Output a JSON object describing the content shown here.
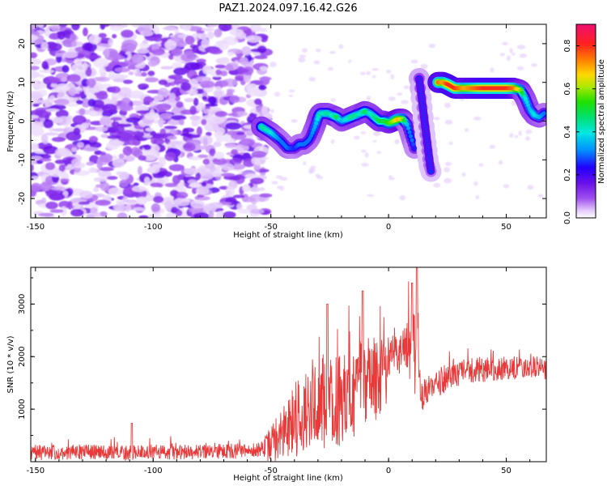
{
  "title": "PAZ1.2024.097.16.42.G26",
  "chart_data": [
    {
      "type": "heatmap",
      "xlabel": "Height of straight line (km)",
      "ylabel": "Frequency (Hz)",
      "xlim": [
        -152,
        67
      ],
      "ylim": [
        -25,
        25
      ],
      "xticks": [
        -150,
        -100,
        -50,
        0,
        50
      ],
      "yticks": [
        -20,
        -10,
        0,
        10,
        20
      ],
      "grid": false,
      "colorbar": {
        "label": "Normalized spectral amplitude",
        "range": [
          0.0,
          0.9
        ],
        "ticks": [
          0.0,
          0.2,
          0.4,
          0.6,
          0.8
        ],
        "colormap": "rainbow (white-violet-blue-cyan-green-yellow-red-magenta)"
      },
      "noise_region_x": [
        -152,
        -52
      ],
      "ridge_segments": [
        {
          "x": [
            -54,
            -50,
            -46,
            -43,
            -40,
            -38,
            -36,
            -34,
            -33,
            -31,
            -30,
            -29,
            -28,
            -26,
            -24,
            -22,
            -20,
            -18,
            -16,
            -14,
            -12,
            -10,
            -8,
            -6,
            -4,
            -2,
            0,
            2,
            4,
            6,
            8,
            9,
            10,
            11
          ],
          "y": [
            -1.5,
            -3,
            -5,
            -7,
            -7,
            -6,
            -6,
            -5,
            -4,
            -1,
            1,
            2,
            2,
            2,
            1.5,
            1,
            0,
            0.5,
            1,
            1.5,
            2,
            2.5,
            2,
            1,
            0,
            0,
            -0.5,
            0,
            0.5,
            0.5,
            -1,
            -3,
            -5,
            -7
          ],
          "amplitude": [
            0.45,
            0.4,
            0.3,
            0.3,
            0.25,
            0.3,
            0.3,
            0.3,
            0.3,
            0.35,
            0.4,
            0.45,
            0.4,
            0.45,
            0.4,
            0.5,
            0.35,
            0.4,
            0.45,
            0.45,
            0.4,
            0.5,
            0.4,
            0.45,
            0.5,
            0.5,
            0.55,
            0.6,
            0.7,
            0.6,
            0.35,
            0.3,
            0.3,
            0.25
          ]
        },
        {
          "x": [
            13,
            14,
            15,
            16,
            17,
            18
          ],
          "y": [
            11,
            5,
            -1,
            -6,
            -11,
            -13
          ],
          "amplitude": [
            0.2,
            0.15,
            0.15,
            0.15,
            0.15,
            0.15
          ]
        },
        {
          "x": [
            21,
            23,
            25,
            28,
            32,
            36,
            40,
            45,
            50,
            53,
            56,
            58,
            60,
            62,
            64,
            66
          ],
          "y": [
            10,
            10,
            9.5,
            8.5,
            8.5,
            8.5,
            8.5,
            8.5,
            8.5,
            8.5,
            8,
            6,
            3,
            1.5,
            1,
            2
          ],
          "amplitude": [
            0.75,
            0.7,
            0.8,
            0.8,
            0.7,
            0.75,
            0.8,
            0.8,
            0.8,
            0.75,
            0.6,
            0.4,
            0.35,
            0.4,
            0.35,
            0.3
          ]
        }
      ]
    },
    {
      "type": "line",
      "xlabel": "Height of straight line (km)",
      "ylabel": "SNR (10 * v/v)",
      "xlim": [
        -152,
        67
      ],
      "ylim": [
        0,
        3700
      ],
      "xticks": [
        -150,
        -100,
        -50,
        0,
        50
      ],
      "yticks": [
        1000,
        2000,
        3000
      ],
      "grid": false,
      "series": [
        {
          "color": "#e83a3a",
          "x": [
            -152,
            -140,
            -130,
            -120,
            -110,
            -100,
            -90,
            -80,
            -70,
            -60,
            -55,
            -52,
            -50,
            -47,
            -44,
            -41,
            -38,
            -35,
            -32,
            -29,
            -26,
            -23,
            -20,
            -17,
            -14,
            -11,
            -8,
            -5,
            -2,
            0,
            3,
            6,
            9,
            12,
            14,
            16,
            18,
            20,
            25,
            30,
            35,
            40,
            45,
            50,
            55,
            60,
            67
          ],
          "y": [
            180,
            170,
            190,
            180,
            170,
            190,
            180,
            190,
            200,
            200,
            210,
            250,
            380,
            450,
            600,
            800,
            900,
            950,
            1050,
            1150,
            1150,
            1100,
            1250,
            1350,
            1300,
            1450,
            1500,
            1550,
            1650,
            1850,
            2150,
            2100,
            2100,
            2050,
            1250,
            1350,
            1400,
            1500,
            1600,
            1700,
            1750,
            1750,
            1750,
            1780,
            1780,
            1800,
            1750
          ],
          "spread": [
            150,
            140,
            150,
            140,
            140,
            140,
            140,
            140,
            150,
            150,
            150,
            250,
            350,
            450,
            500,
            700,
            800,
            800,
            800,
            900,
            900,
            900,
            900,
            900,
            900,
            900,
            900,
            800,
            700,
            650,
            450,
            450,
            700,
            900,
            300,
            300,
            300,
            300,
            280,
            260,
            250,
            240,
            240,
            230,
            230,
            230,
            230
          ]
        }
      ]
    }
  ]
}
